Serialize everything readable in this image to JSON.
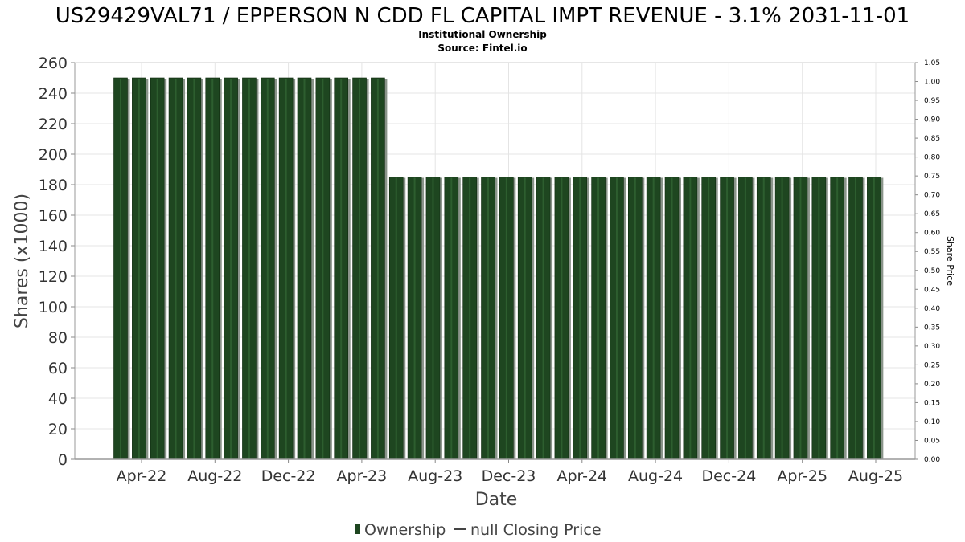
{
  "chart_data": {
    "type": "bar",
    "title": "US29429VAL71 / EPPERSON N CDD FL CAPITAL IMPT REVENUE - 3.1% 2031-11-01",
    "subtitle": "Institutional Ownership",
    "source": "Source: Fintel.io",
    "xlabel": "Date",
    "ylabel": "Shares (x1000)",
    "y2label": "Share Price",
    "ylim": [
      0,
      260
    ],
    "y2lim": [
      0,
      1.05
    ],
    "yticks": [
      "0",
      "20",
      "40",
      "60",
      "80",
      "100",
      "120",
      "140",
      "160",
      "180",
      "200",
      "220",
      "240",
      "260"
    ],
    "y2ticks": [
      "0.00",
      "0.05",
      "0.10",
      "0.15",
      "0.20",
      "0.25",
      "0.30",
      "0.35",
      "0.40",
      "0.45",
      "0.50",
      "0.55",
      "0.60",
      "0.65",
      "0.70",
      "0.75",
      "0.80",
      "0.85",
      "0.90",
      "0.95",
      "1.00",
      "1.05"
    ],
    "xticks": [
      "Apr-22",
      "Aug-22",
      "Dec-22",
      "Apr-23",
      "Aug-23",
      "Dec-23",
      "Apr-24",
      "Aug-24",
      "Dec-24",
      "Apr-25",
      "Aug-25"
    ],
    "grid": true,
    "bar_color": "#1e4620",
    "series": [
      {
        "name": "Ownership",
        "values": [
          250,
          250,
          250,
          250,
          250,
          250,
          250,
          250,
          250,
          250,
          250,
          250,
          250,
          250,
          250,
          185,
          185,
          185,
          185,
          185,
          185,
          185,
          185,
          185,
          185,
          185,
          185,
          185,
          185,
          185,
          185,
          185,
          185,
          185,
          185,
          185,
          185,
          185,
          185,
          185,
          185,
          185
        ]
      }
    ],
    "legend": {
      "position": "bottom",
      "entries": [
        "Ownership",
        "null Closing Price"
      ]
    }
  }
}
